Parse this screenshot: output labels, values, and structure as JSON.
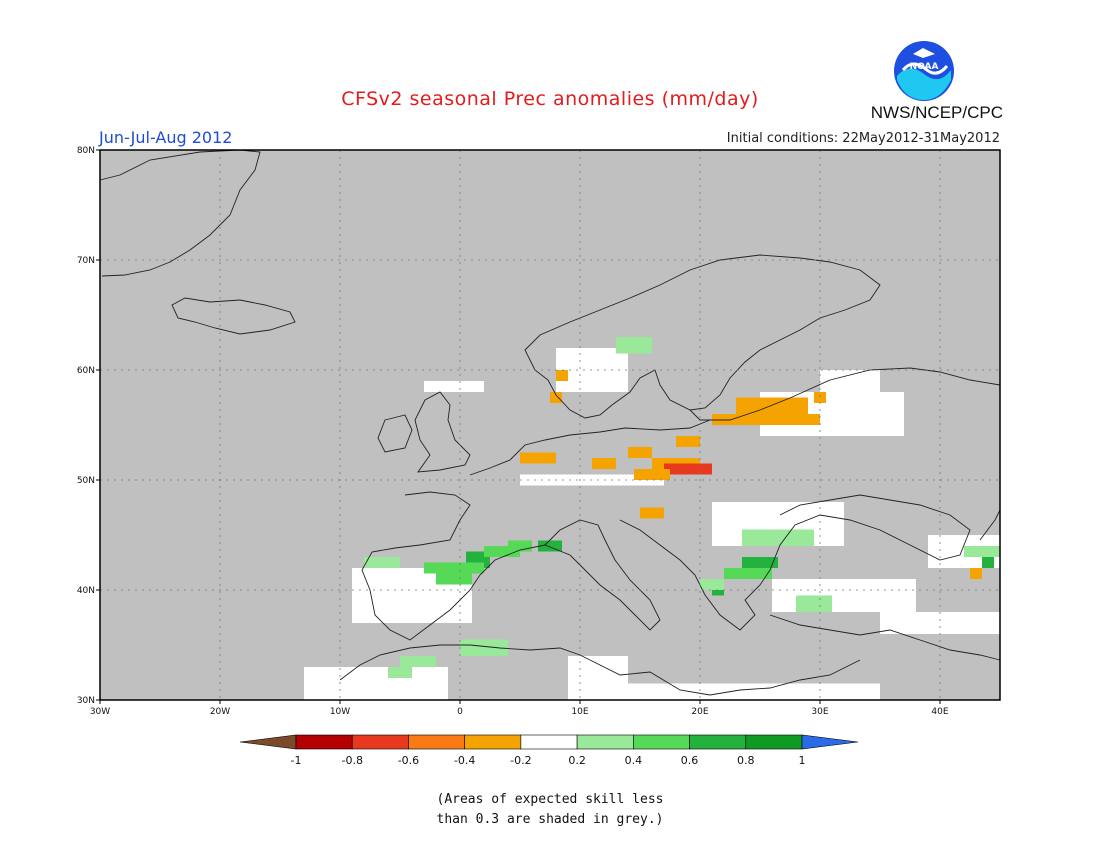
{
  "header": {
    "title": "CFSv2 seasonal Prec anomalies (mm/day)",
    "agency": "NWS/NCEP/CPC",
    "season": "Jun-Jul-Aug 2012",
    "initial_conditions": "Initial conditions: 22May2012-31May2012",
    "logo_text": "NOAA"
  },
  "map": {
    "lon_range": [
      -30,
      45
    ],
    "lat_range": [
      30,
      80
    ],
    "lon_ticks": [
      "30W",
      "20W",
      "10W",
      "0",
      "10E",
      "20E",
      "30E",
      "40E"
    ],
    "lat_ticks": [
      "30N",
      "40N",
      "50N",
      "60N",
      "70N",
      "80N"
    ],
    "cells": [
      {
        "lon": 14,
        "lat": 52,
        "c": "#f4a300",
        "w": 2,
        "h": 1
      },
      {
        "lon": 16,
        "lat": 51,
        "c": "#f4a300",
        "w": 4,
        "h": 1
      },
      {
        "lon": 17,
        "lat": 50.5,
        "c": "#e8381d",
        "w": 4,
        "h": 1
      },
      {
        "lon": 14.5,
        "lat": 50,
        "c": "#f4a300",
        "w": 3,
        "h": 1
      },
      {
        "lon": 18,
        "lat": 53,
        "c": "#f4a300",
        "w": 2,
        "h": 1
      },
      {
        "lon": 23,
        "lat": 56,
        "c": "#f4a300",
        "w": 6,
        "h": 1.5
      },
      {
        "lon": 21,
        "lat": 55,
        "c": "#f4a300",
        "w": 9,
        "h": 1
      },
      {
        "lon": 11,
        "lat": 51,
        "c": "#f4a300",
        "w": 2,
        "h": 1
      },
      {
        "lon": 5,
        "lat": 51.5,
        "c": "#f4a300",
        "w": 3,
        "h": 1
      },
      {
        "lon": 15,
        "lat": 46.5,
        "c": "#f4a300",
        "w": 2,
        "h": 1
      },
      {
        "lon": 29.5,
        "lat": 57,
        "c": "#f4a300",
        "w": 1,
        "h": 1
      },
      {
        "lon": 8,
        "lat": 59,
        "c": "#f4a300",
        "w": 1,
        "h": 1
      },
      {
        "lon": 7.5,
        "lat": 57,
        "c": "#f4a300",
        "w": 1,
        "h": 1
      },
      {
        "lon": 42.5,
        "lat": 41,
        "c": "#f4a300",
        "w": 1,
        "h": 1
      },
      {
        "lon": 13,
        "lat": 61.5,
        "c": "#9ae89a",
        "w": 3,
        "h": 1.5
      },
      {
        "lon": 0.5,
        "lat": 42,
        "c": "#23b23d",
        "w": 2,
        "h": 1.5
      },
      {
        "lon": 6.5,
        "lat": 43.5,
        "c": "#23b23d",
        "w": 2,
        "h": 1
      },
      {
        "lon": -3,
        "lat": 41.5,
        "c": "#56d956",
        "w": 5,
        "h": 1
      },
      {
        "lon": -2,
        "lat": 40.5,
        "c": "#56d956",
        "w": 3,
        "h": 1
      },
      {
        "lon": 2,
        "lat": 43,
        "c": "#56d956",
        "w": 3,
        "h": 1
      },
      {
        "lon": 4,
        "lat": 43.5,
        "c": "#56d956",
        "w": 2,
        "h": 1
      },
      {
        "lon": -8,
        "lat": 42,
        "c": "#9ae89a",
        "w": 3,
        "h": 1
      },
      {
        "lon": 0,
        "lat": 34,
        "c": "#9ae89a",
        "w": 4,
        "h": 1.5
      },
      {
        "lon": -5,
        "lat": 33,
        "c": "#9ae89a",
        "w": 3,
        "h": 1
      },
      {
        "lon": -6,
        "lat": 32,
        "c": "#9ae89a",
        "w": 2,
        "h": 1
      },
      {
        "lon": 23.5,
        "lat": 42,
        "c": "#23b23d",
        "w": 3,
        "h": 1
      },
      {
        "lon": 22,
        "lat": 41,
        "c": "#56d956",
        "w": 4,
        "h": 1
      },
      {
        "lon": 23.5,
        "lat": 44,
        "c": "#9ae89a",
        "w": 6,
        "h": 1.5
      },
      {
        "lon": 21,
        "lat": 39.5,
        "c": "#23b23d",
        "w": 1,
        "h": 1.5
      },
      {
        "lon": 20,
        "lat": 40,
        "c": "#9ae89a",
        "w": 2,
        "h": 1
      },
      {
        "lon": 28,
        "lat": 38,
        "c": "#9ae89a",
        "w": 3,
        "h": 1.5
      },
      {
        "lon": 43.5,
        "lat": 42,
        "c": "#23b23d",
        "w": 1,
        "h": 1
      },
      {
        "lon": 42,
        "lat": 43,
        "c": "#9ae89a",
        "w": 3,
        "h": 1
      }
    ],
    "white_regions": [
      {
        "lon": -9,
        "lat": 37,
        "w": 10,
        "h": 5
      },
      {
        "lon": -13,
        "lat": 30,
        "w": 12,
        "h": 3
      },
      {
        "lon": 9,
        "lat": 30,
        "w": 5,
        "h": 4
      },
      {
        "lon": 14,
        "lat": 30,
        "w": 4,
        "h": 1.5
      },
      {
        "lon": 8,
        "lat": 58,
        "w": 6,
        "h": 4
      },
      {
        "lon": 5,
        "lat": 49.5,
        "w": 12,
        "h": 1
      },
      {
        "lon": 21,
        "lat": 44,
        "w": 11,
        "h": 4
      },
      {
        "lon": 25,
        "lat": 54,
        "w": 12,
        "h": 4
      },
      {
        "lon": 30,
        "lat": 56,
        "w": 5,
        "h": 4
      },
      {
        "lon": 26,
        "lat": 38,
        "w": 12,
        "h": 3
      },
      {
        "lon": 35,
        "lat": 36,
        "w": 10,
        "h": 2
      },
      {
        "lon": 39,
        "lat": 42,
        "w": 6,
        "h": 3
      },
      {
        "lon": -3,
        "lat": 58,
        "w": 5,
        "h": 1
      },
      {
        "lon": 15,
        "lat": 30,
        "w": 20,
        "h": 1.5
      }
    ]
  },
  "colorbar": {
    "colors": [
      "#7a4a2a",
      "#b40000",
      "#e8381d",
      "#fa7a14",
      "#f4a300",
      "#ffffff",
      "#9ae89a",
      "#56d956",
      "#23b23d",
      "#109a24",
      "#2a6ce8"
    ],
    "labels": [
      "-1",
      "-0.8",
      "-0.6",
      "-0.4",
      "-0.2",
      "0.2",
      "0.4",
      "0.6",
      "0.8",
      "1"
    ]
  },
  "note": {
    "line1": "(Areas of expected skill less",
    "line2": "than 0.3 are shaded in grey.)"
  }
}
